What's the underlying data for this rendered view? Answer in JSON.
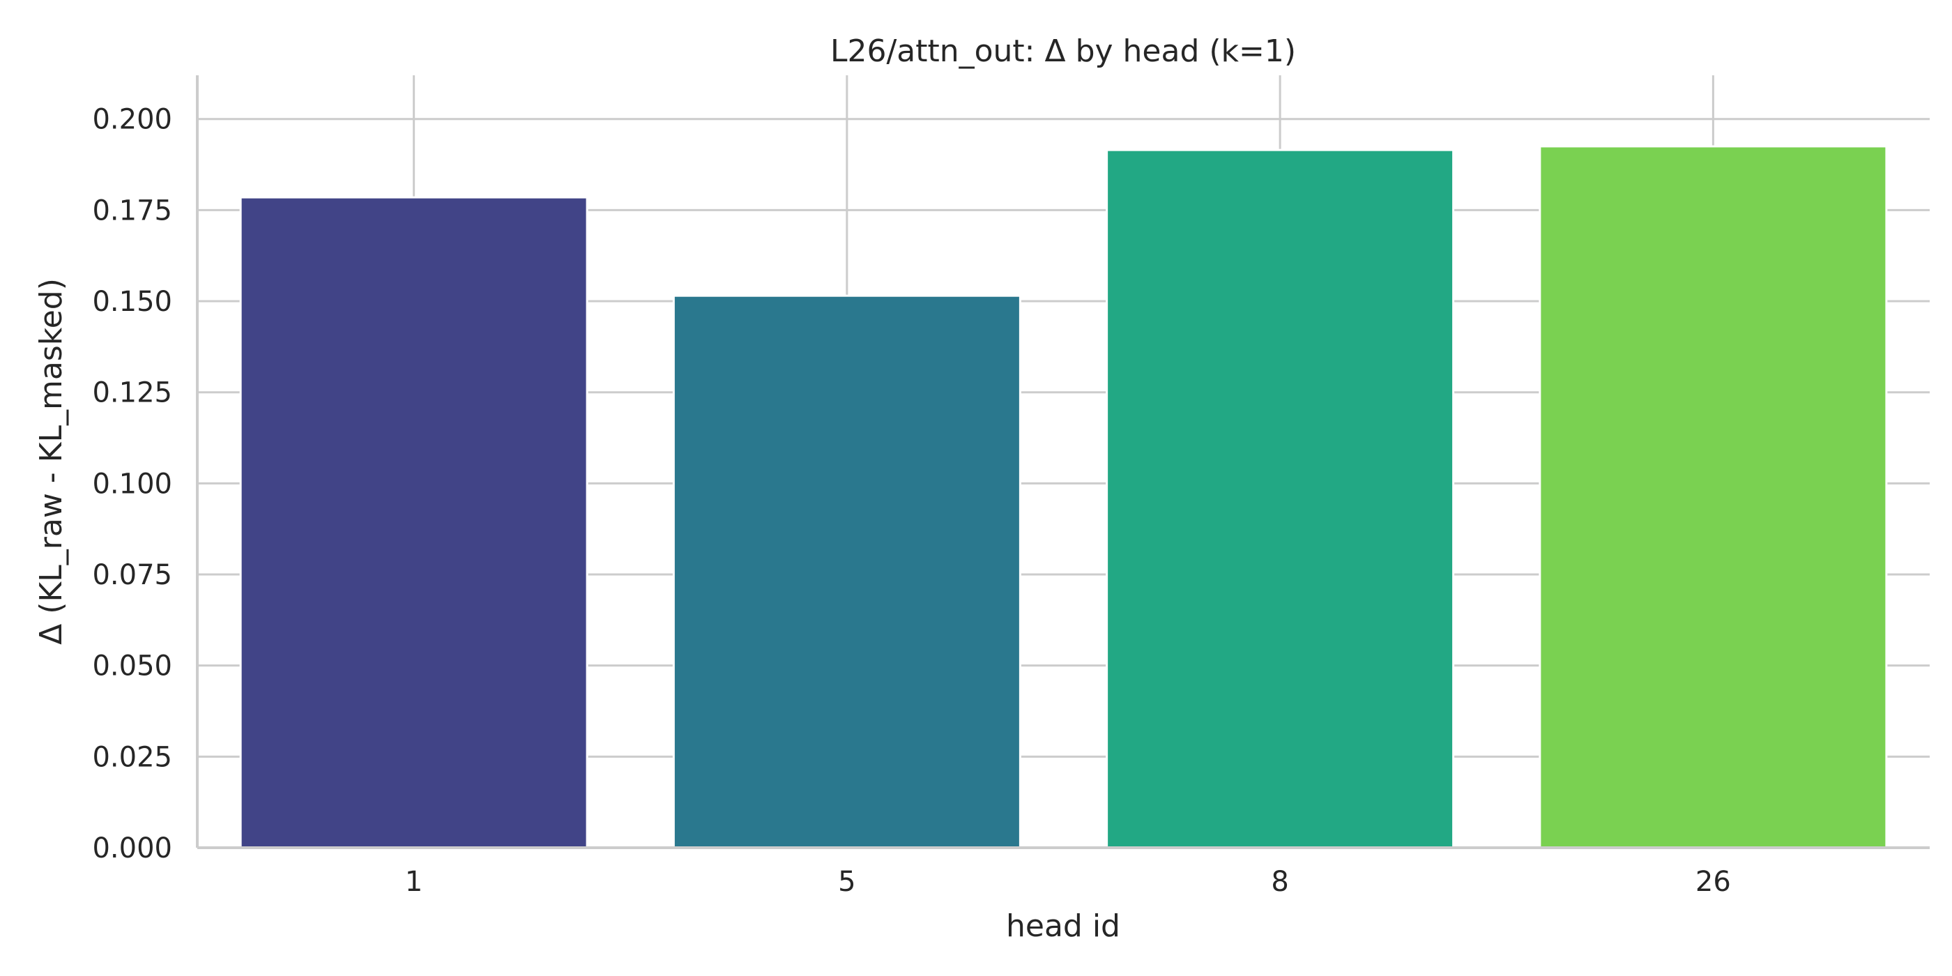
{
  "chart_data": {
    "type": "bar",
    "title": "L26/attn_out: Δ by head (k=1)",
    "xlabel": "head id",
    "ylabel": "Δ (KL_raw - KL_masked)",
    "categories": [
      "1",
      "5",
      "8",
      "26"
    ],
    "values": [
      0.1785,
      0.1515,
      0.1915,
      0.1925
    ],
    "bar_colors": [
      "#414487",
      "#2a788e",
      "#22a884",
      "#7ad151"
    ],
    "ylim": [
      0,
      0.212
    ],
    "yticks": [
      0.0,
      0.025,
      0.05,
      0.075,
      0.1,
      0.125,
      0.15,
      0.175,
      0.2
    ],
    "ytick_labels": [
      "0.000",
      "0.025",
      "0.050",
      "0.075",
      "0.100",
      "0.125",
      "0.150",
      "0.175",
      "0.200"
    ],
    "grid": true,
    "legend": "none"
  }
}
